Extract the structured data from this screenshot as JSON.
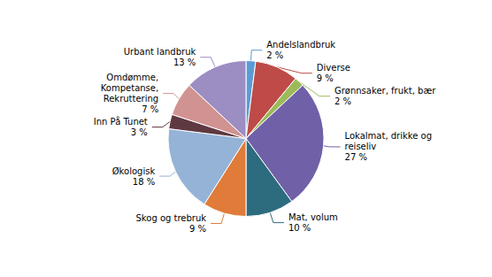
{
  "chart_data": {
    "type": "pie",
    "categories": [
      "Andelslandbruk",
      "Diverse",
      "Grønnsaker, frukt, bær",
      "Lokalmat, drikke og\nreiseliv",
      "Mat, volum",
      "Skog og trebruk",
      "Økologisk",
      "Inn På Tunet",
      "Omdømme,\nKompetanse,\nRekruttering",
      "Urbant landbruk"
    ],
    "values": [
      2,
      9,
      2,
      27,
      10,
      9,
      18,
      3,
      7,
      13
    ],
    "value_labels": [
      "2 %",
      "9 %",
      "2 %",
      "27 %",
      "10 %",
      "9 %",
      "18 %",
      "3 %",
      "7 %",
      "13 %"
    ],
    "colors": [
      "#5B9BD5",
      "#BE4B48",
      "#9BBB59",
      "#7060A8",
      "#2D6B7F",
      "#E07B39",
      "#95B3D7",
      "#5F3942",
      "#D19392",
      "#9C8DC3"
    ],
    "data_labels": true
  }
}
